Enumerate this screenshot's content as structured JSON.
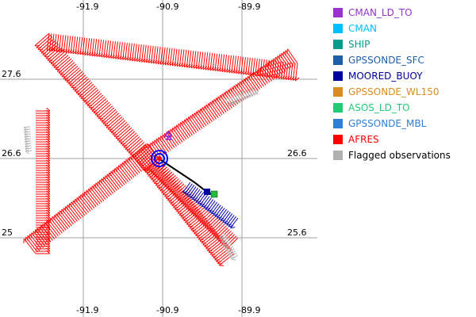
{
  "map": {
    "lon_ticks": [
      "-91.9",
      "-90.9",
      "-89.9"
    ],
    "lat_ticks": [
      "27.6",
      "26.6",
      "25.6"
    ],
    "lat_tick_left_bottom": "25",
    "grid_color": "#a0a0a0",
    "series": {
      "afres_color": "#ff0000",
      "flagged_color": "#b0b0b0",
      "moored_buoy_color": "#0000aa",
      "cman_ld_to_color": "#8a2be2",
      "dropsonde_track_color": "#000000",
      "asos_ld_to_color": "#22bb44"
    }
  },
  "legend": {
    "items": [
      {
        "label": "CMAN_LD_TO",
        "color": "#9932cc"
      },
      {
        "label": "CMAN",
        "color": "#00bfff"
      },
      {
        "label": "SHIP",
        "color": "#009b8c"
      },
      {
        "label": "GPSSONDE_SFC",
        "color": "#1f5fa8"
      },
      {
        "label": "MOORED_BUOY",
        "color": "#0000a0"
      },
      {
        "label": "GPSSONDE_WL150",
        "color": "#d98c1f"
      },
      {
        "label": "ASOS_LD_TO",
        "color": "#22cc77"
      },
      {
        "label": "GPSSONDE_MBL",
        "color": "#2f7fd6"
      },
      {
        "label": "AFRES",
        "color": "#ff0000"
      },
      {
        "label": "Flagged observations",
        "color": "#b0b0b0"
      }
    ]
  }
}
